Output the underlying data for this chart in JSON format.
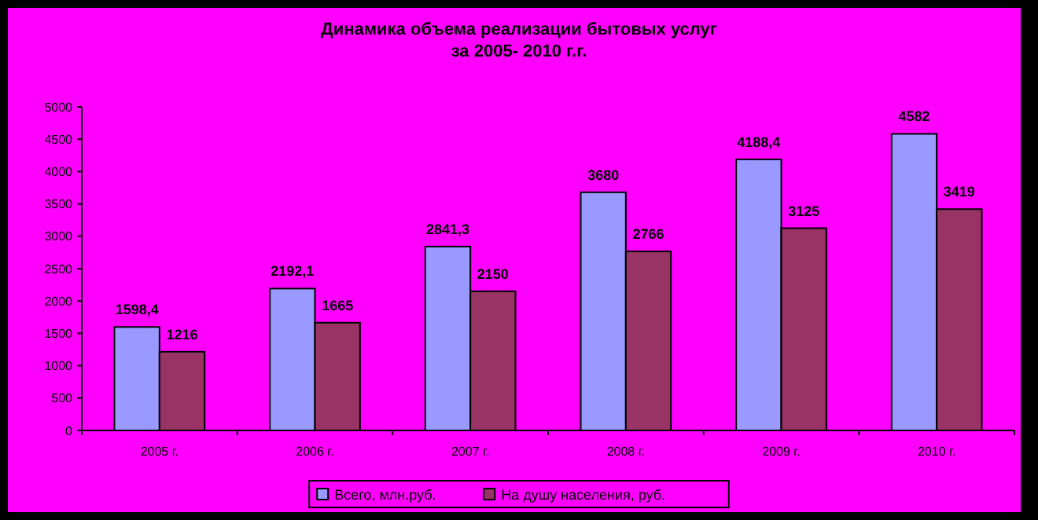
{
  "chart_data": {
    "type": "bar",
    "title": "Динамика объема реализации бытовых услуг\nза 2005- 2010 г.г.",
    "categories": [
      "2005 г.",
      "2006 г.",
      "2007 г.",
      "2008 г.",
      "2009 г.",
      "2010 г."
    ],
    "series": [
      {
        "name": "Всего, млн.руб.",
        "color": "#9999ff",
        "values": [
          1598.4,
          2192.1,
          2841.3,
          3680,
          4188.4,
          4582
        ],
        "value_labels": [
          "1598,4",
          "2192,1",
          "2841,3",
          "3680",
          "4188,4",
          "4582"
        ]
      },
      {
        "name": "На душу населения, руб.",
        "color": "#993366",
        "values": [
          1216,
          1665,
          2150,
          2766,
          3125,
          3419
        ],
        "value_labels": [
          "1216",
          "1665",
          "2150",
          "2766",
          "3125",
          "3419"
        ]
      }
    ],
    "ylim": [
      0,
      5000
    ],
    "yticks": [
      0,
      500,
      1000,
      1500,
      2000,
      2500,
      3000,
      3500,
      4000,
      4500,
      5000
    ],
    "grid": false,
    "legend": "bottom"
  }
}
